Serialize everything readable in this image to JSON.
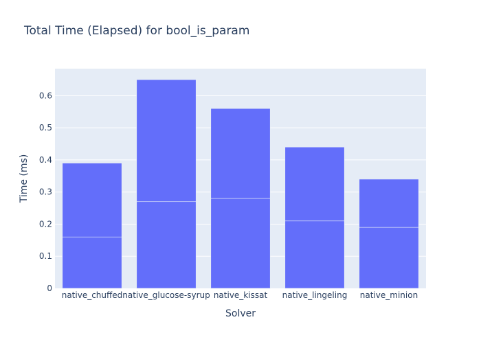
{
  "chart_data": {
    "type": "bar",
    "barmode": "stack",
    "title": "Total Time (Elapsed) for bool_is_param",
    "xlabel": "Solver",
    "ylabel": "Time (ms)",
    "categories": [
      "native_chuffed",
      "native_glucose-syrup",
      "native_kissat",
      "native_lingeling",
      "native_minion"
    ],
    "series": [
      {
        "values": [
          0.16,
          0.27,
          0.28,
          0.21,
          0.19
        ]
      },
      {
        "values": [
          0.23,
          0.38,
          0.28,
          0.23,
          0.15
        ]
      }
    ],
    "ylim": [
      0,
      0.6842
    ],
    "yticks": [
      0,
      0.1,
      0.2,
      0.3,
      0.4,
      0.5,
      0.6
    ],
    "ytick_labels": [
      "0",
      "0.1",
      "0.2",
      "0.3",
      "0.4",
      "0.5",
      "0.6"
    ],
    "grid": true,
    "legend": "none",
    "colors": {
      "bar": "#636efa",
      "plot_bg": "#e5ecf6",
      "grid": "#ffffff",
      "text": "#2a3f5f"
    }
  }
}
